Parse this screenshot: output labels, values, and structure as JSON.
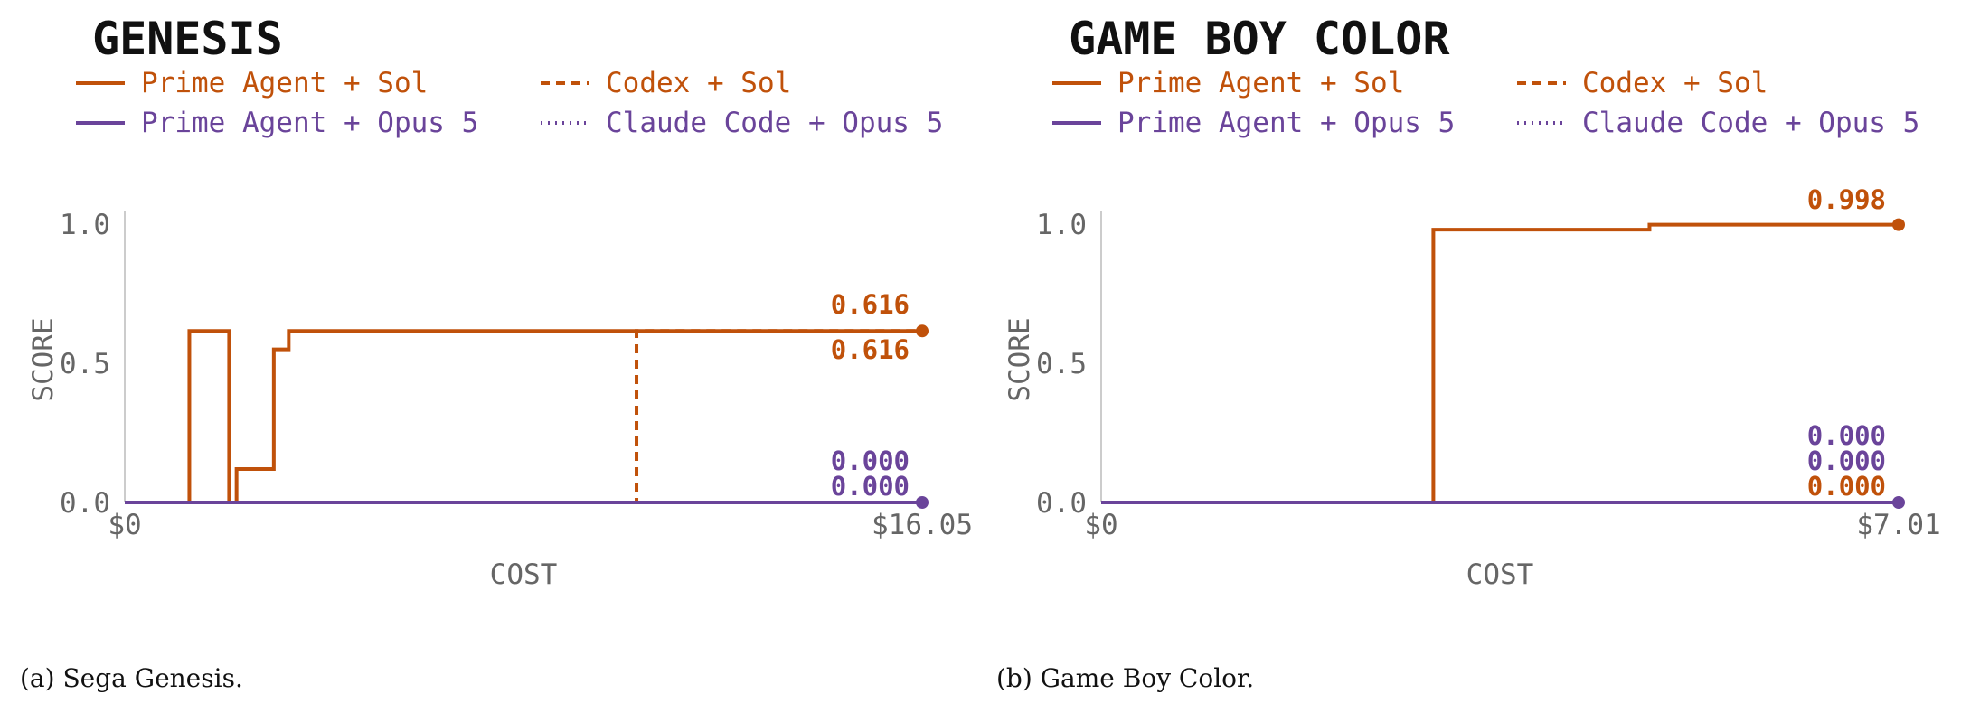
{
  "colors": {
    "orange": "#c0510a",
    "purple": "#6a449a"
  },
  "chart_data": [
    {
      "type": "line",
      "step": true,
      "title": "GENESIS",
      "xlabel": "COST",
      "ylabel": "SCORE",
      "xlim": [
        0,
        16.05
      ],
      "ylim": [
        0,
        1.0
      ],
      "yticks": [
        "0.0",
        "0.5",
        "1.0"
      ],
      "xticks": [
        "$0",
        "$16.05"
      ],
      "caption": "(a) Sega Genesis.",
      "series": [
        {
          "name": "Prime Agent + Sol",
          "color": "#c0510a",
          "style": "solid",
          "x": [
            0,
            1.3,
            2.1,
            2.25,
            3.0,
            3.3,
            16.05
          ],
          "y": [
            0,
            0.616,
            0,
            0.12,
            0.55,
            0.616,
            0.616
          ],
          "end_label": "0.616",
          "marker": true
        },
        {
          "name": "Codex + Sol",
          "color": "#c0510a",
          "style": "dashed",
          "x": [
            0,
            10.3,
            16.05
          ],
          "y": [
            0,
            0.616,
            0.616
          ],
          "end_label": "0.616",
          "marker": false
        },
        {
          "name": "Prime Agent + Opus 5",
          "color": "#6a449a",
          "style": "solid",
          "x": [
            0,
            16.05
          ],
          "y": [
            0,
            0
          ],
          "end_label": "0.000",
          "marker": true
        },
        {
          "name": "Claude Code + Opus 5",
          "color": "#6a449a",
          "style": "dotted",
          "x": [
            0,
            16.05
          ],
          "y": [
            0,
            0
          ],
          "end_label": "0.000",
          "marker": false
        }
      ]
    },
    {
      "type": "line",
      "step": true,
      "title": "GAME BOY COLOR",
      "xlabel": "COST",
      "ylabel": "SCORE",
      "xlim": [
        0,
        7.01
      ],
      "ylim": [
        0,
        1.0
      ],
      "yticks": [
        "0.0",
        "0.5",
        "1.0"
      ],
      "xticks": [
        "$0",
        "$7.01"
      ],
      "caption": "(b) Game Boy Color.",
      "series": [
        {
          "name": "Prime Agent + Sol",
          "color": "#c0510a",
          "style": "solid",
          "x": [
            0,
            2.92,
            4.82,
            7.01
          ],
          "y": [
            0,
            0.98,
            0.998,
            0.998
          ],
          "end_label": "0.998",
          "marker": true
        },
        {
          "name": "Codex + Sol",
          "color": "#c0510a",
          "style": "dashed",
          "x": [
            0,
            7.01
          ],
          "y": [
            0,
            0
          ],
          "end_label": "0.000",
          "marker": false
        },
        {
          "name": "Prime Agent + Opus 5",
          "color": "#6a449a",
          "style": "solid",
          "x": [
            0,
            7.01
          ],
          "y": [
            0,
            0
          ],
          "end_label": "0.000",
          "marker": true
        },
        {
          "name": "Claude Code + Opus 5",
          "color": "#6a449a",
          "style": "dotted",
          "x": [
            0,
            7.01
          ],
          "y": [
            0,
            0
          ],
          "end_label": "0.000",
          "marker": false
        }
      ]
    }
  ]
}
